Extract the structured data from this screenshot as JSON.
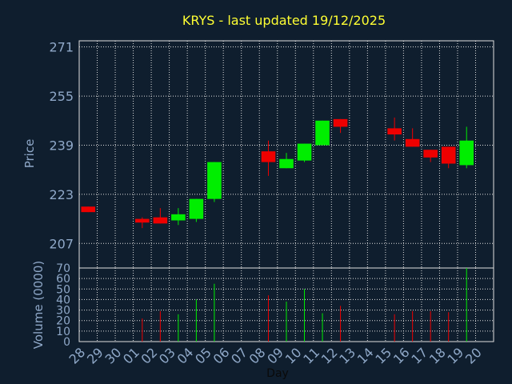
{
  "chart_data": {
    "type": "candlestick",
    "title": "KRYS - last updated 19/12/2025",
    "xlabel": "Day",
    "ylabel": "Price",
    "volume_label": "Volume (0000)",
    "categories": [
      "28",
      "29",
      "30",
      "01",
      "02",
      "03",
      "04",
      "05",
      "06",
      "07",
      "08",
      "09",
      "10",
      "11",
      "12",
      "13",
      "14",
      "15",
      "16",
      "17",
      "18",
      "19",
      "20"
    ],
    "price_ticks": [
      271,
      255,
      239,
      223,
      207
    ],
    "price_ylim": [
      199,
      273
    ],
    "volume_ticks": [
      70,
      60,
      50,
      40,
      30,
      20,
      10,
      0
    ],
    "volume_ylim": [
      0,
      70
    ],
    "grid": true,
    "colors": {
      "up": "#00ee00",
      "down": "#ee0000",
      "background": "#0f1e2e",
      "grid": "#e0e0e0",
      "text": "#8fa8c8",
      "title": "#ffff33"
    },
    "candles": [
      {
        "day": "28",
        "open": 219.0,
        "high": 219.0,
        "close": 217.2,
        "low": 217.2,
        "volume": 0
      },
      {
        "day": "01",
        "open": 215.0,
        "high": 215.5,
        "close": 213.8,
        "low": 212.0,
        "volume": 22
      },
      {
        "day": "02",
        "open": 215.5,
        "high": 218.5,
        "close": 213.5,
        "low": 213.5,
        "volume": 29
      },
      {
        "day": "03",
        "open": 214.5,
        "high": 218.5,
        "close": 216.5,
        "low": 213.0,
        "volume": 26
      },
      {
        "day": "04",
        "open": 215.0,
        "high": 221.5,
        "close": 221.5,
        "low": 214.0,
        "volume": 40
      },
      {
        "day": "05",
        "open": 221.5,
        "high": 233.5,
        "close": 233.5,
        "low": 220.5,
        "volume": 55
      },
      {
        "day": "08",
        "open": 237.0,
        "high": 240.5,
        "close": 233.5,
        "low": 229.0,
        "volume": 44
      },
      {
        "day": "09",
        "open": 231.5,
        "high": 236.5,
        "close": 234.5,
        "low": 231.5,
        "volume": 38
      },
      {
        "day": "10",
        "open": 234.0,
        "high": 239.5,
        "close": 239.5,
        "low": 233.5,
        "volume": 50
      },
      {
        "day": "11",
        "open": 239.0,
        "high": 247.0,
        "close": 247.0,
        "low": 239.0,
        "volume": 27
      },
      {
        "day": "12",
        "open": 247.5,
        "high": 247.5,
        "close": 245.0,
        "low": 243.0,
        "volume": 34
      },
      {
        "day": "15",
        "open": 244.5,
        "high": 248.0,
        "close": 242.5,
        "low": 240.5,
        "volume": 26
      },
      {
        "day": "16",
        "open": 241.0,
        "high": 244.5,
        "close": 238.5,
        "low": 238.5,
        "volume": 29
      },
      {
        "day": "17",
        "open": 237.5,
        "high": 237.5,
        "close": 235.0,
        "low": 233.5,
        "volume": 29
      },
      {
        "day": "18",
        "open": 238.5,
        "high": 238.5,
        "close": 233.0,
        "low": 231.5,
        "volume": 28
      },
      {
        "day": "19",
        "open": 232.5,
        "high": 245.0,
        "close": 240.5,
        "low": 231.5,
        "volume": 70
      }
    ]
  }
}
